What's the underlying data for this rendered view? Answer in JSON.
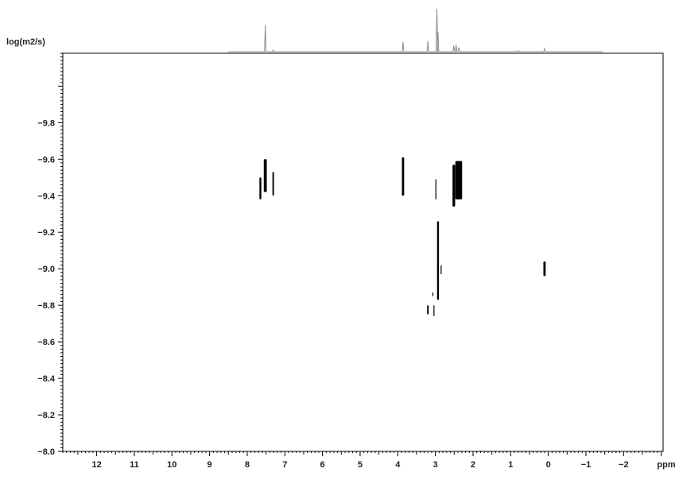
{
  "chart_data": {
    "type": "scatter",
    "title": "",
    "xlabel": "ppm",
    "ylabel": "log(m2/s)",
    "xlim": [
      12.9,
      -3.05
    ],
    "ylim": [
      -10.18,
      -8.0
    ],
    "x_reversed": true,
    "y_reversed": true,
    "grid": false,
    "x_ticks": [
      12,
      11,
      10,
      9,
      8,
      7,
      6,
      5,
      4,
      3,
      2,
      1,
      0,
      -1,
      -2
    ],
    "x_tick_labels": [
      "12",
      "11",
      "10",
      "9",
      "8",
      "7",
      "6",
      "5",
      "4",
      "3",
      "2",
      "1",
      "0",
      "−1",
      "−2"
    ],
    "y_ticks": [
      -9.8,
      -9.6,
      -9.4,
      -9.2,
      -9.0,
      -8.8,
      -8.6,
      -8.4,
      -8.2,
      -8.0
    ],
    "y_tick_labels": [
      "−9.8",
      "−9.6",
      "−9.4",
      "−9.2",
      "−9.0",
      "−8.8",
      "−8.6",
      "−8.4",
      "−8.2",
      "−8.0"
    ],
    "colors": {
      "axis": "#000000",
      "signal": "#000000",
      "projection": "#8c8c8c",
      "text": "#222222"
    },
    "signals": [
      {
        "x": 7.65,
        "x_width": 0.05,
        "y_min": -9.5,
        "y_max": -9.38
      },
      {
        "x": 7.52,
        "x_width": 0.08,
        "y_min": -9.6,
        "y_max": -9.42
      },
      {
        "x": 7.31,
        "x_width": 0.04,
        "y_min": -9.53,
        "y_max": -9.4
      },
      {
        "x": 3.86,
        "x_width": 0.06,
        "y_min": -9.61,
        "y_max": -9.4
      },
      {
        "x": 2.99,
        "x_width": 0.02,
        "y_min": -9.49,
        "y_max": -9.38
      },
      {
        "x": 2.51,
        "x_width": 0.07,
        "y_min": -9.57,
        "y_max": -9.34
      },
      {
        "x": 2.38,
        "x_width": 0.18,
        "y_min": -9.59,
        "y_max": -9.38
      },
      {
        "x": 2.93,
        "x_width": 0.05,
        "y_min": -9.26,
        "y_max": -8.83
      },
      {
        "x": 2.85,
        "x_width": 0.02,
        "y_min": -9.02,
        "y_max": -8.97
      },
      {
        "x": 3.2,
        "x_width": 0.04,
        "y_min": -8.8,
        "y_max": -8.75
      },
      {
        "x": 3.04,
        "x_width": 0.02,
        "y_min": -8.8,
        "y_max": -8.74
      },
      {
        "x": 3.07,
        "x_width": 0.02,
        "y_min": -8.87,
        "y_max": -8.85
      },
      {
        "x": 0.1,
        "x_width": 0.06,
        "y_min": -9.04,
        "y_max": -8.96
      }
    ],
    "projection_peaks": [
      {
        "x": 7.52,
        "height": 0.62
      },
      {
        "x": 7.31,
        "height": 0.04
      },
      {
        "x": 3.86,
        "height": 0.23
      },
      {
        "x": 3.2,
        "height": 0.25
      },
      {
        "x": 2.96,
        "height": 1.0
      },
      {
        "x": 2.93,
        "height": 0.45
      },
      {
        "x": 2.51,
        "height": 0.14
      },
      {
        "x": 2.45,
        "height": 0.16
      },
      {
        "x": 2.38,
        "height": 0.1
      },
      {
        "x": 0.8,
        "height": 0.02
      },
      {
        "x": 0.1,
        "height": 0.07
      }
    ]
  }
}
